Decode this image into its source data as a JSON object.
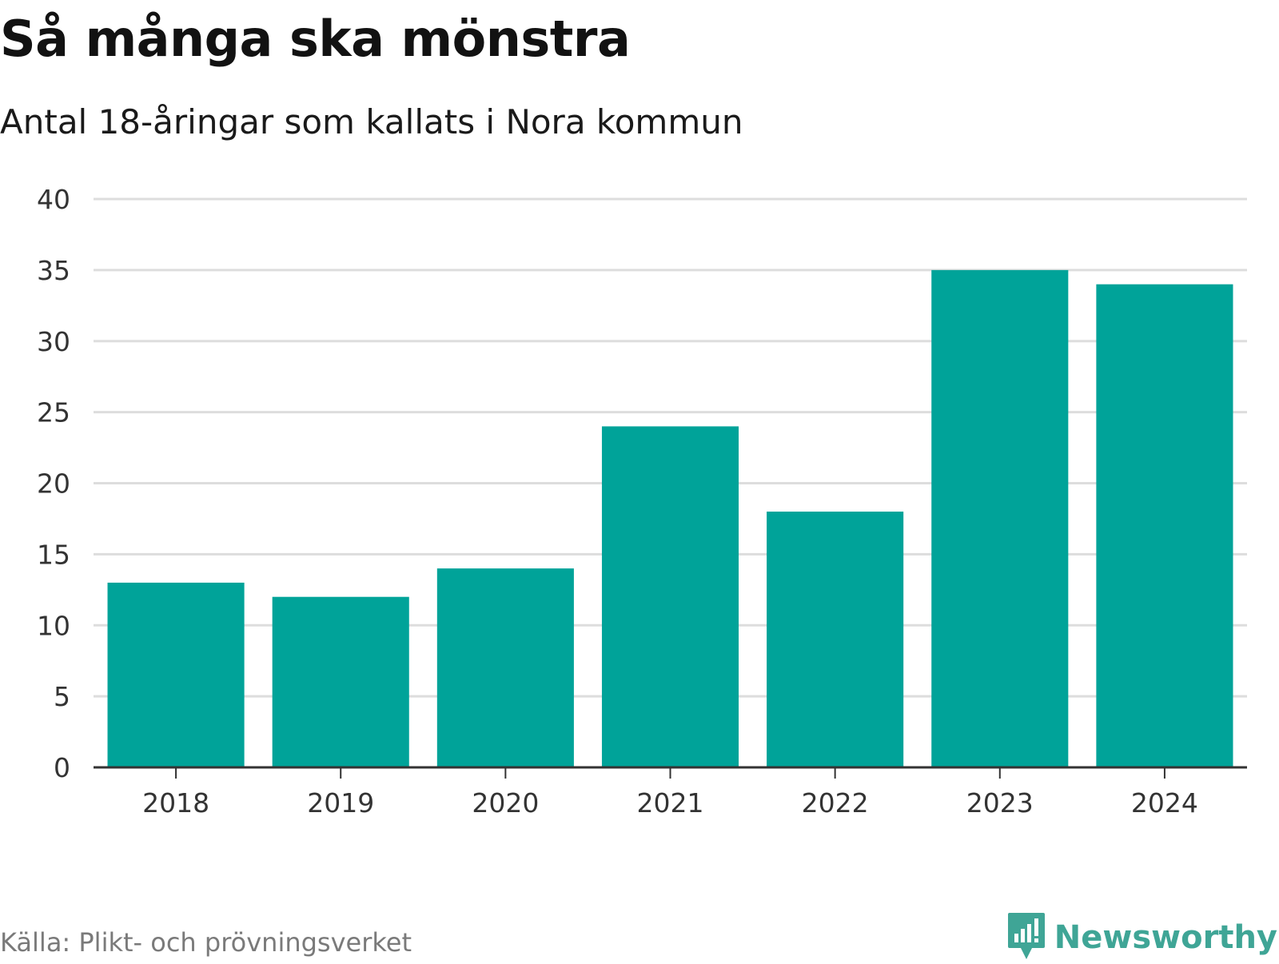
{
  "header": {
    "title": "Så många ska mönstra",
    "subtitle": "Antal 18-åringar som kallats i Nora kommun"
  },
  "footer": {
    "source": "Källa: Plikt- och prövningsverket",
    "brand": "Newsworthy"
  },
  "colors": {
    "bar": "#00a399",
    "grid": "#dddddd",
    "axis": "#333333",
    "brand": "#3fa596"
  },
  "icons": {
    "brand_logo": "newsworthy-logo-icon"
  },
  "chart_data": {
    "type": "bar",
    "title": "Så många ska mönstra",
    "subtitle": "Antal 18-åringar som kallats i Nora kommun",
    "xlabel": "",
    "ylabel": "",
    "categories": [
      "2018",
      "2019",
      "2020",
      "2021",
      "2022",
      "2023",
      "2024"
    ],
    "values": [
      13,
      12,
      14,
      24,
      18,
      35,
      34
    ],
    "ylim": [
      0,
      40
    ],
    "yticks": [
      0,
      5,
      10,
      15,
      20,
      25,
      30,
      35,
      40
    ],
    "grid": true,
    "legend": "none"
  }
}
